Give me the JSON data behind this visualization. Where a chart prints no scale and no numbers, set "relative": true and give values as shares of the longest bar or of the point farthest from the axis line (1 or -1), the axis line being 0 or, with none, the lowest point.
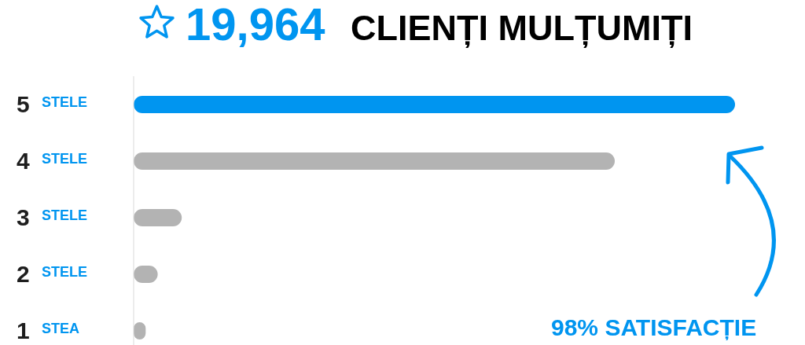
{
  "chart_data": {
    "type": "bar",
    "orientation": "horizontal",
    "relative": true,
    "title": "19,964 CLIENȚI MULȚUMIȚI",
    "categories": [
      "5 STELE",
      "4 STELE",
      "3 STELE",
      "2 STELE",
      "1 STEA"
    ],
    "values": [
      1,
      0.8,
      0.08,
      0.04,
      0.02
    ],
    "colors": [
      "#0095f0",
      "#b3b3b3",
      "#b3b3b3",
      "#b3b3b3",
      "#b3b3b3"
    ],
    "annotations": [
      "98% SATISFACȚIE"
    ]
  }
}
